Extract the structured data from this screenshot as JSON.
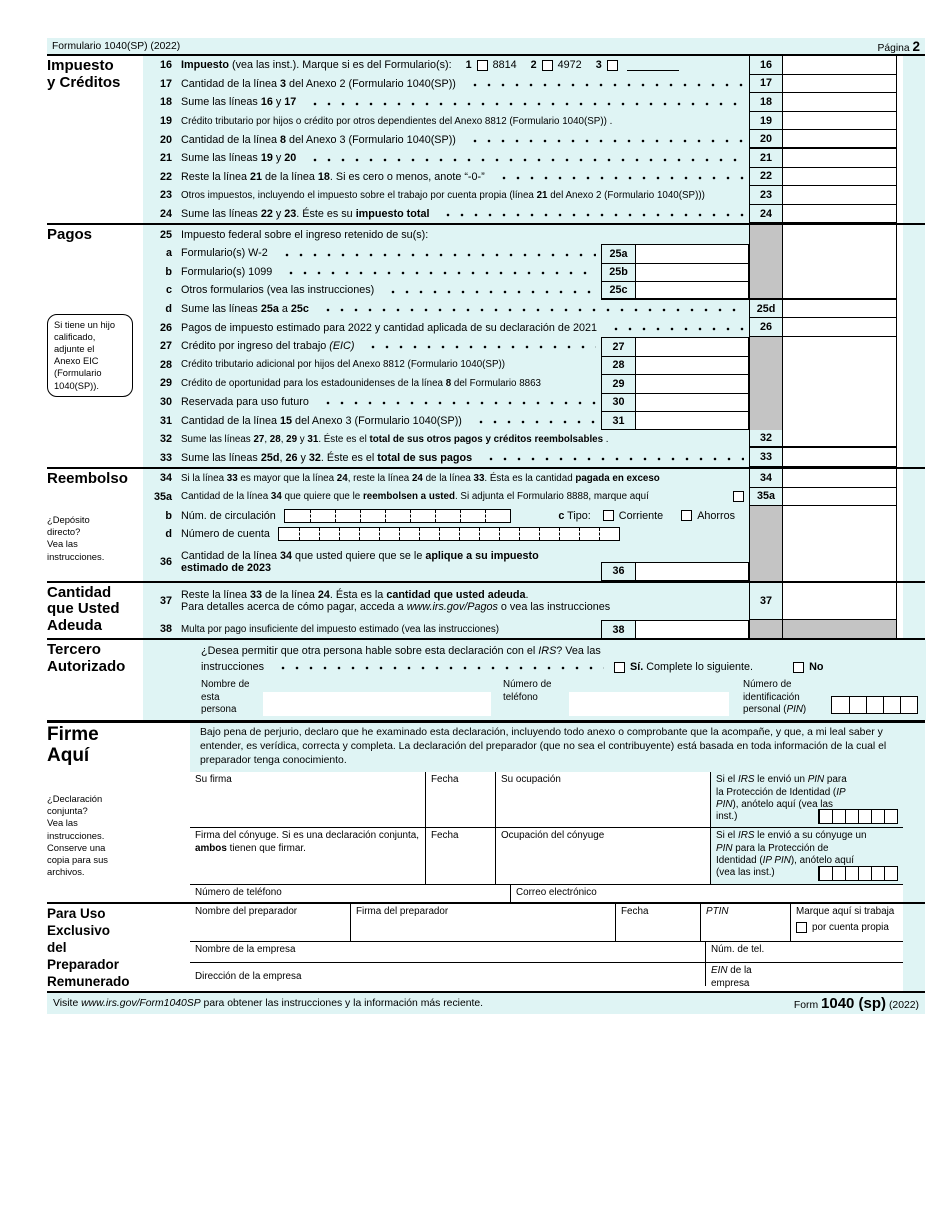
{
  "header": {
    "left": "Formulario 1040(SP) (2022)",
    "page_word": "Página ",
    "page_num": "2"
  },
  "colors": {
    "shade": "#dff4f4",
    "gray": "#c4c4c4"
  },
  "sections": {
    "tax": {
      "title": "Impuesto\ny Créditos"
    },
    "pagos": {
      "title": "Pagos",
      "bubble": "Si tiene un hijo\ncalificado,\nadjunte el\nAnexo EIC\n(Formulario\n1040(SP))."
    },
    "reembolso": {
      "title": "Reembolso",
      "note": "¿Depósito\ndirecto?\nVea las\ninstrucciones."
    },
    "cantidad": {
      "title": "Cantidad\nque Usted\nAdeuda"
    },
    "tercero": {
      "title": "Tercero\nAutorizado"
    },
    "firme": {
      "title": "Firme\nAquí",
      "note": "¿Declaración\nconjunta?\nVea las\ninstrucciones.\nConserve una\ncopia para sus\narchivos."
    },
    "prep": {
      "title": "Para Uso\nExclusivo\ndel\nPreparador\nRemunerado"
    }
  },
  "lines": {
    "l16": {
      "n": "16",
      "t": [
        [
          "Impuesto",
          "b"
        ],
        [
          " (vea las inst.). Marque si es del Formulario(s):"
        ]
      ],
      "k1": "1",
      "f1": "8814",
      "k2": "2",
      "f2": "4972",
      "k3": "3"
    },
    "l17": {
      "n": "17",
      "t": [
        [
          "Cantidad de la línea "
        ],
        [
          "3",
          "b"
        ],
        [
          " del Anexo 2 (Formulario 1040(SP))"
        ]
      ]
    },
    "l18": {
      "n": "18",
      "t": [
        [
          "Sume las líneas "
        ],
        [
          "16",
          "b"
        ],
        [
          " y "
        ],
        [
          "17",
          "b"
        ]
      ]
    },
    "l19": {
      "n": "19",
      "t": [
        [
          "Crédito tributario por hijos o crédito por otros dependientes del Anexo 8812 (Formulario 1040(SP)) ."
        ]
      ]
    },
    "l20": {
      "n": "20",
      "t": [
        [
          "Cantidad de la línea "
        ],
        [
          "8",
          "b"
        ],
        [
          " del Anexo 3 (Formulario 1040(SP))"
        ]
      ]
    },
    "l21": {
      "n": "21",
      "t": [
        [
          "Sume las líneas "
        ],
        [
          "19",
          "b"
        ],
        [
          " y "
        ],
        [
          "20",
          "b"
        ]
      ]
    },
    "l22": {
      "n": "22",
      "t": [
        [
          "Reste la línea "
        ],
        [
          "21",
          "b"
        ],
        [
          " de la línea "
        ],
        [
          "18",
          "b"
        ],
        [
          ". Si es cero o menos, anote “-0-”"
        ]
      ]
    },
    "l23": {
      "n": "23",
      "t": [
        [
          "Otros impuestos, incluyendo el impuesto sobre el trabajo por cuenta propia (línea "
        ],
        [
          "21",
          "b"
        ],
        [
          " del Anexo 2 (Formulario 1040(SP)))"
        ]
      ]
    },
    "l24": {
      "n": "24",
      "t": [
        [
          "Sume las líneas "
        ],
        [
          "22",
          "b"
        ],
        [
          " y "
        ],
        [
          "23",
          "b"
        ],
        [
          ". Éste es su "
        ],
        [
          "impuesto total",
          "b"
        ]
      ]
    },
    "l25": {
      "n": "25",
      "t": [
        [
          "Impuesto federal sobre el ingreso retenido de su(s):"
        ]
      ]
    },
    "l25a": {
      "n": "a",
      "il": "25a",
      "t": [
        [
          "Formulario(s) W-2"
        ]
      ]
    },
    "l25b": {
      "n": "b",
      "il": "25b",
      "t": [
        [
          "Formulario(s) 1099"
        ]
      ]
    },
    "l25c": {
      "n": "c",
      "il": "25c",
      "t": [
        [
          "Otros formularios (vea las instrucciones)"
        ]
      ]
    },
    "l25d": {
      "n": "d",
      "nb": "25d",
      "t": [
        [
          "Sume las líneas "
        ],
        [
          "25a",
          "b"
        ],
        [
          " a "
        ],
        [
          "25c",
          "b"
        ]
      ]
    },
    "l26": {
      "n": "26",
      "t": [
        [
          "Pagos de impuesto estimado para 2022 y cantidad aplicada de su declaración de 2021"
        ]
      ]
    },
    "l27": {
      "n": "27",
      "il": "27",
      "t": [
        [
          "Crédito por ingreso del trabajo "
        ],
        [
          "(EIC)",
          "i"
        ]
      ]
    },
    "l28": {
      "n": "28",
      "il": "28",
      "t": [
        [
          "Crédito tributario adicional por hijos del Anexo 8812 (Formulario 1040(SP))"
        ]
      ]
    },
    "l29": {
      "n": "29",
      "il": "29",
      "t": [
        [
          "Crédito de oportunidad para los estadounidenses de la línea "
        ],
        [
          "8",
          "b"
        ],
        [
          " del Formulario 8863"
        ]
      ]
    },
    "l30": {
      "n": "30",
      "il": "30",
      "t": [
        [
          "Reservada para uso futuro"
        ]
      ]
    },
    "l31": {
      "n": "31",
      "il": "31",
      "t": [
        [
          "Cantidad de la línea "
        ],
        [
          "15",
          "b"
        ],
        [
          " del Anexo 3 (Formulario 1040(SP))"
        ]
      ]
    },
    "l32": {
      "n": "32",
      "t": [
        [
          "Sume las líneas "
        ],
        [
          "27",
          "b"
        ],
        [
          ", "
        ],
        [
          "28",
          "b"
        ],
        [
          ", "
        ],
        [
          "29",
          "b"
        ],
        [
          " y "
        ],
        [
          "31",
          "b"
        ],
        [
          ". Éste es el "
        ],
        [
          "total de sus otros pagos y créditos reembolsables",
          "b"
        ],
        [
          "   ."
        ]
      ]
    },
    "l33": {
      "n": "33",
      "t": [
        [
          "Sume las líneas "
        ],
        [
          "25d",
          "b"
        ],
        [
          ", "
        ],
        [
          "26",
          "b"
        ],
        [
          " y "
        ],
        [
          "32",
          "b"
        ],
        [
          ". Éste es el "
        ],
        [
          "total de sus pagos",
          "b"
        ]
      ]
    },
    "l34": {
      "n": "34",
      "t": [
        [
          "Si la línea "
        ],
        [
          "33",
          "b"
        ],
        [
          " es mayor que la línea "
        ],
        [
          "24",
          "b"
        ],
        [
          ", reste la línea "
        ],
        [
          "24",
          "b"
        ],
        [
          " de la línea "
        ],
        [
          "33",
          "b"
        ],
        [
          ". Ésta es la cantidad "
        ],
        [
          "pagada en exceso",
          "b"
        ]
      ]
    },
    "l35a": {
      "n": "35a",
      "t": [
        [
          "Cantidad de la línea "
        ],
        [
          "34",
          "b"
        ],
        [
          " que quiere que le "
        ],
        [
          "reembolsen a usted",
          "b"
        ],
        [
          ". Si adjunta el Formulario 8888, marque aquí"
        ]
      ]
    },
    "l35b": {
      "n": "b",
      "t": [
        [
          "Núm. de circulación"
        ]
      ],
      "c": [
        [
          "c",
          "b"
        ],
        [
          " Tipo:"
        ]
      ],
      "opt1": "Corriente",
      "opt2": "Ahorros"
    },
    "l35d": {
      "n": "d",
      "t": [
        [
          "Número de cuenta"
        ]
      ]
    },
    "l36": {
      "n": "36",
      "il": "36",
      "t1": [
        [
          "Cantidad de la línea "
        ],
        [
          "34",
          "b"
        ],
        [
          " que usted quiere que se le "
        ],
        [
          "aplique a su impuesto",
          "b"
        ]
      ],
      "t2": [
        [
          "estimado de 2023",
          "b"
        ]
      ]
    },
    "l37": {
      "n": "37",
      "t1": [
        [
          "Reste la línea "
        ],
        [
          "33",
          "b"
        ],
        [
          " de la línea "
        ],
        [
          "24",
          "b"
        ],
        [
          ". Ésta es la "
        ],
        [
          "cantidad que usted adeuda",
          "b"
        ],
        [
          "."
        ]
      ],
      "t2": [
        [
          "Para detalles acerca de cómo pagar, acceda a "
        ],
        [
          "www.irs.gov/Pagos",
          "i"
        ],
        [
          " o vea las instrucciones"
        ]
      ]
    },
    "l38": {
      "n": "38",
      "il": "38",
      "t": [
        [
          "Multa por pago insuficiente del impuesto estimado (vea las instrucciones)"
        ]
      ]
    }
  },
  "tercero": {
    "q1": [
      [
        "¿Desea permitir que otra persona hable sobre esta declaración con el "
      ],
      [
        "IRS",
        "i"
      ],
      [
        "? Vea las"
      ]
    ],
    "q2": "instrucciones",
    "yes": [
      [
        "Sí.",
        "b"
      ],
      [
        " Complete lo siguiente."
      ]
    ],
    "no": "No",
    "name_label": "Nombre de\nesta\npersona",
    "phone_label": "Número de\nteléfono",
    "pin_label": [
      [
        "Número de\nidentificación\npersonal ("
      ],
      [
        "PIN",
        "i"
      ],
      [
        ")"
      ]
    ]
  },
  "firme": {
    "jurat": "Bajo pena de perjurio, declaro que he examinado esta declaración, incluyendo todo anexo o comprobante que la acompañe, y que, a mi leal saber y entender, es verídica, correcta y completa. La declaración del preparador (que no sea el contribuyente) está basada en toda información de la cual el preparador tenga conocimiento.",
    "your_sig": "Su firma",
    "date1": "Fecha",
    "your_occ": "Su ocupación",
    "pin1": [
      [
        "Si el "
      ],
      [
        "IRS",
        "i"
      ],
      [
        " le envió un "
      ],
      [
        "PIN",
        "i"
      ],
      [
        " para la Protección de Identidad ("
      ],
      [
        "IP PIN",
        "i"
      ],
      [
        "), anótelo aquí (vea las inst.)"
      ]
    ],
    "spouse_sig": [
      [
        "Firma del cónyuge. Si es una declaración conjunta, "
      ],
      [
        "ambos",
        "b"
      ],
      [
        " tienen que firmar."
      ]
    ],
    "date2": "Fecha",
    "spouse_occ": "Ocupación del cónyuge",
    "pin2": [
      [
        "Si el "
      ],
      [
        "IRS",
        "i"
      ],
      [
        " le envió a su cónyuge un "
      ],
      [
        "PIN",
        "i"
      ],
      [
        " para la Protección de Identidad ("
      ],
      [
        "IP PIN",
        "i"
      ],
      [
        "), anótelo aquí (vea las inst.)"
      ]
    ],
    "phone": "Número de teléfono",
    "email": "Correo electrónico"
  },
  "prep": {
    "name": "Nombre del preparador",
    "sig": "Firma del preparador",
    "date": "Fecha",
    "ptin": "PTIN",
    "check1": "Marque aquí si trabaja",
    "check2": "por cuenta propia",
    "firm_name": "Nombre de la empresa",
    "firm_tel": "Núm. de tel.",
    "firm_addr": "Dirección de la empresa",
    "firm_ein": [
      [
        "EIN",
        "i"
      ],
      [
        " de la\nempresa"
      ]
    ]
  },
  "footer": {
    "left": [
      [
        "Visite "
      ],
      [
        "www.irs.gov/Form1040SP",
        "i"
      ],
      [
        " para obtener las instrucciones y la información más reciente."
      ]
    ],
    "form_word": "Form",
    "form_num": "1040 (sp)",
    "form_year": "(2022)"
  }
}
